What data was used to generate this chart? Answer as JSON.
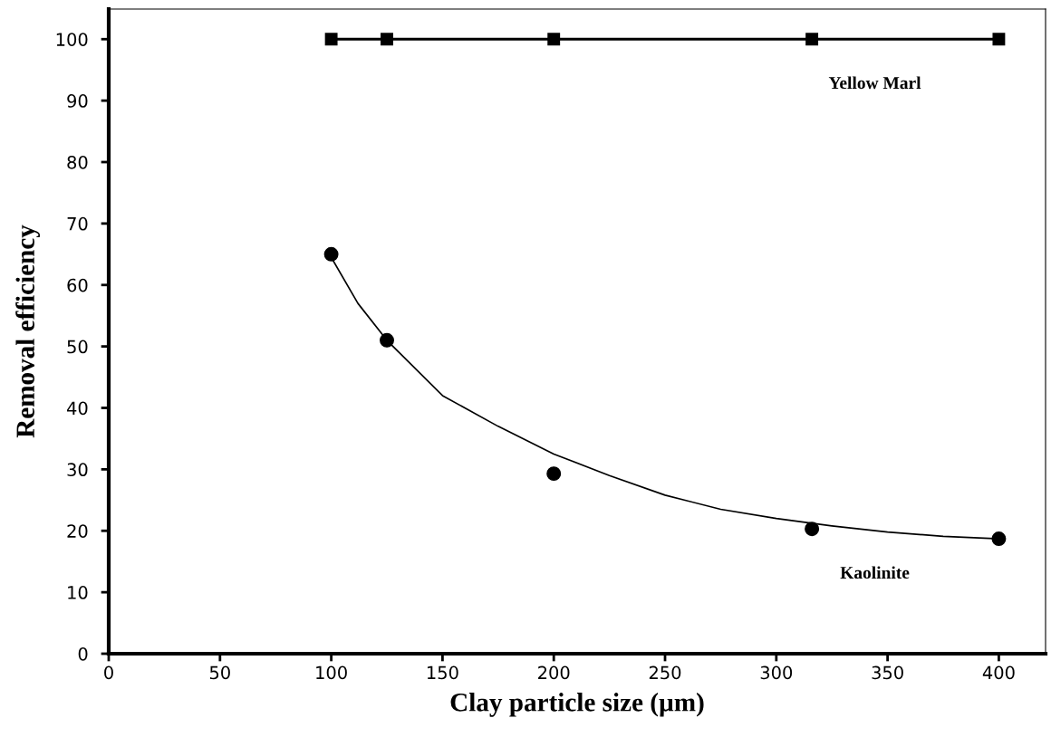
{
  "chart_data": {
    "type": "line",
    "xlabel": "Clay particle size (µm)",
    "ylabel": "Removal efficiency",
    "xlim": [
      0,
      421
    ],
    "xticks": [
      0,
      50,
      100,
      150,
      200,
      250,
      300,
      350,
      400
    ],
    "ylim": [
      0,
      104.9
    ],
    "yticks": [
      0,
      10,
      20,
      30,
      40,
      50,
      60,
      70,
      80,
      90,
      100
    ],
    "grid": false,
    "legend": false,
    "series": [
      {
        "name": "Yellow Marl",
        "marker": "square",
        "color": "#000000",
        "x": [
          100,
          125,
          200,
          316,
          400
        ],
        "values": [
          100,
          100,
          100,
          100,
          100
        ]
      },
      {
        "name": "Kaolinite",
        "type": "scatter",
        "marker": "circle",
        "color": "#000000",
        "x": [
          100,
          125,
          200,
          316,
          400
        ],
        "values": [
          65,
          51,
          29.3,
          20.3,
          18.7
        ]
      },
      {
        "marker": "none",
        "color": "#000000",
        "x": [
          100,
          112,
          125,
          150,
          175,
          200,
          225,
          250,
          275,
          300,
          325,
          350,
          375,
          400
        ],
        "values": [
          64.5,
          57,
          51,
          42,
          37,
          32.5,
          29,
          25.8,
          23.5,
          22,
          20.8,
          19.8,
          19.1,
          18.7
        ]
      }
    ]
  }
}
